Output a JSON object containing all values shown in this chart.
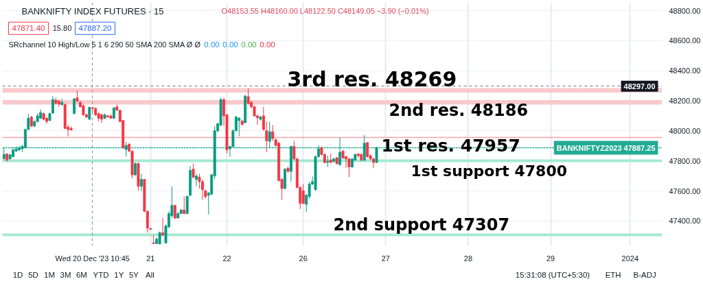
{
  "chart_data": {
    "type": "candlestick",
    "title": "BANKNIFTY INDEX FUTURES · 15",
    "categories": [
      null,
      null,
      null,
      null,
      null,
      null,
      null,
      null,
      null,
      null,
      null,
      null,
      null,
      null,
      null,
      null,
      null,
      null,
      null,
      null,
      null,
      null,
      null,
      null,
      null,
      null,
      null,
      null,
      null,
      "Wed 20 Dec '23 10:45",
      null,
      null,
      null,
      null,
      null,
      null,
      null,
      null,
      null,
      null,
      null,
      null,
      null,
      null,
      null,
      null,
      null,
      null,
      "21",
      null,
      null,
      null,
      null,
      null,
      null,
      null,
      null,
      null,
      null,
      null,
      null,
      null,
      null,
      null,
      null,
      null,
      null,
      null,
      null,
      null,
      null,
      null,
      null,
      "22",
      null,
      null,
      null,
      null,
      null,
      null,
      null,
      null,
      null,
      null,
      null,
      null,
      null,
      null,
      null,
      null,
      null,
      null,
      null,
      null,
      null,
      null,
      null,
      null,
      "26",
      null,
      null,
      null,
      null,
      null,
      null,
      null,
      null,
      null,
      null,
      null,
      null,
      null,
      null,
      null,
      null,
      null,
      null,
      null,
      null,
      null,
      null,
      null,
      null,
      null,
      null,
      "27",
      null,
      null,
      null,
      null,
      null,
      null,
      null,
      null,
      null,
      null,
      null,
      null,
      null,
      null,
      null,
      null,
      null,
      null,
      null,
      null,
      null,
      null,
      null,
      null,
      null,
      null,
      "28",
      null,
      null,
      null,
      null,
      null,
      null,
      null,
      null,
      null,
      null,
      null,
      null,
      null,
      null,
      null,
      null,
      null,
      null,
      null,
      null,
      null,
      null,
      null,
      null,
      null,
      null,
      "29",
      null,
      null,
      null,
      null,
      null,
      null,
      null,
      null,
      null,
      null,
      null,
      null,
      null,
      null,
      null,
      null,
      null,
      null,
      null,
      null,
      null,
      null,
      null,
      null,
      null,
      "2024",
      null,
      null,
      null,
      null,
      null,
      null,
      null,
      null,
      null,
      null
    ],
    "ohlc": [
      [
        47816,
        47888,
        47805,
        47843
      ],
      [
        47846,
        47850,
        47794,
        47805
      ],
      [
        47813,
        47846,
        47810,
        47840
      ],
      [
        47828,
        47888,
        47825,
        47873
      ],
      [
        47866,
        47896,
        47858,
        47879
      ],
      [
        47873,
        47900,
        47866,
        47885
      ],
      [
        47881,
        47906,
        47858,
        47897
      ],
      [
        47888,
        48015,
        47885,
        48009
      ],
      [
        48009,
        48115,
        48006,
        48084
      ],
      [
        48092,
        48100,
        48024,
        48032
      ],
      [
        48032,
        48070,
        48026,
        48062
      ],
      [
        48062,
        48115,
        48057,
        48100
      ],
      [
        48084,
        48142,
        48081,
        48122
      ],
      [
        48115,
        48122,
        48069,
        48077
      ],
      [
        48084,
        48092,
        48047,
        48062
      ],
      [
        48069,
        48121,
        48066,
        48115
      ],
      [
        48118,
        48232,
        48115,
        48208
      ],
      [
        48205,
        48220,
        48175,
        48183
      ],
      [
        48198,
        48205,
        48160,
        48178
      ],
      [
        48175,
        48213,
        48168,
        48190
      ],
      [
        48175,
        48183,
        48013,
        48016
      ],
      [
        48024,
        48040,
        47964,
        48009
      ],
      [
        48016,
        48031,
        48001,
        48006
      ],
      [
        48115,
        48220,
        48112,
        48213
      ],
      [
        48220,
        48266,
        48193,
        48198
      ],
      [
        48190,
        48198,
        48157,
        48160
      ],
      [
        48167,
        48175,
        48100,
        48107
      ],
      [
        48107,
        48115,
        48084,
        48092
      ],
      [
        48077,
        48160,
        48074,
        48157
      ],
      [
        48153.55,
        48160.0,
        48122.5,
        48149.05
      ],
      [
        48149,
        48157,
        48100,
        48107
      ],
      [
        48115,
        48122,
        48062,
        48084
      ],
      [
        48107,
        48115,
        48054,
        48077
      ],
      [
        48084,
        48115,
        48077,
        48107
      ],
      [
        48100,
        48107,
        48092,
        48092
      ],
      [
        48100,
        48107,
        48080,
        48084
      ],
      [
        48084,
        48160,
        48080,
        48152
      ],
      [
        48160,
        48175,
        48133,
        48137
      ],
      [
        48137,
        48140,
        48057,
        48062
      ],
      [
        48069,
        48072,
        47880,
        47888
      ],
      [
        47876,
        47926,
        47828,
        47903
      ],
      [
        47911,
        47918,
        47858,
        47865
      ],
      [
        47865,
        47870,
        47684,
        47707
      ],
      [
        47707,
        47790,
        47700,
        47782
      ],
      [
        47782,
        47790,
        47601,
        47631
      ],
      [
        47631,
        47714,
        47601,
        47677
      ],
      [
        47677,
        47680,
        47460,
        47465
      ],
      [
        47465,
        47470,
        47322,
        47352
      ],
      [
        47350,
        47355,
        47340,
        47345
      ],
      [
        47255,
        47307,
        47246,
        47250
      ],
      [
        47250,
        47290,
        47247,
        47280
      ],
      [
        47247,
        47330,
        47245,
        47322
      ],
      [
        47322,
        47420,
        47299,
        47307
      ],
      [
        47254,
        47375,
        47250,
        47367
      ],
      [
        47360,
        47465,
        47355,
        47450
      ],
      [
        47435,
        47631,
        47420,
        47503
      ],
      [
        47503,
        47510,
        47412,
        47420
      ],
      [
        47420,
        47460,
        47415,
        47450
      ],
      [
        47450,
        47480,
        47445,
        47473
      ],
      [
        47473,
        47563,
        47443,
        47450
      ],
      [
        47450,
        47570,
        47445,
        47563
      ],
      [
        47571,
        47767,
        47563,
        47737
      ],
      [
        47745,
        47782,
        47684,
        47692
      ],
      [
        47677,
        47714,
        47630,
        47699
      ],
      [
        47692,
        47714,
        47616,
        47662
      ],
      [
        47662,
        47677,
        47541,
        47609
      ],
      [
        47601,
        47609,
        47548,
        47563
      ],
      [
        47571,
        47594,
        47443,
        47586
      ],
      [
        47579,
        47714,
        47571,
        47707
      ],
      [
        47700,
        48031,
        47680,
        48001
      ],
      [
        48001,
        48054,
        47990,
        48047
      ],
      [
        48039,
        48220,
        48031,
        48208
      ],
      [
        48208,
        48220,
        48031,
        48100
      ],
      [
        48107,
        48112,
        47850,
        47873
      ],
      [
        47881,
        47900,
        47828,
        47896
      ],
      [
        47896,
        48010,
        47890,
        48001
      ],
      [
        48001,
        48100,
        47995,
        48092
      ],
      [
        48069,
        48092,
        47964,
        48084
      ],
      [
        48066,
        48070,
        48035,
        48042
      ],
      [
        48054,
        48240,
        48050,
        48232
      ],
      [
        48228,
        48281,
        48175,
        48183
      ],
      [
        48190,
        48198,
        48150,
        48160
      ],
      [
        48160,
        48167,
        48092,
        48100
      ],
      [
        48100,
        48107,
        48039,
        48087
      ],
      [
        48077,
        48100,
        48069,
        48092
      ],
      [
        48100,
        48160,
        48001,
        48009
      ],
      [
        48001,
        48062,
        47858,
        47933
      ],
      [
        47930,
        48062,
        47888,
        47994
      ],
      [
        47994,
        48039,
        47933,
        47949
      ],
      [
        47941,
        47950,
        47895,
        47903
      ],
      [
        47918,
        47926,
        47660,
        47669
      ],
      [
        47677,
        47685,
        47541,
        47616
      ],
      [
        47616,
        47752,
        47610,
        47745
      ],
      [
        47752,
        47760,
        47720,
        47730
      ],
      [
        47730,
        47900,
        47662,
        47896
      ],
      [
        47896,
        47933,
        47805,
        47813
      ],
      [
        47813,
        47820,
        47615,
        47624
      ],
      [
        47624,
        47631,
        47480,
        47518
      ],
      [
        47601,
        47646,
        47511,
        47518
      ],
      [
        47511,
        47580,
        47458,
        47571
      ],
      [
        47563,
        47660,
        47548,
        47646
      ],
      [
        47646,
        47697,
        47640,
        47662
      ],
      [
        47609,
        47835,
        47601,
        47828
      ],
      [
        47828,
        47903,
        47820,
        47880
      ],
      [
        47888,
        47896,
        47835,
        47843
      ],
      [
        47843,
        47850,
        47780,
        47790
      ],
      [
        47790,
        47835,
        47760,
        47798
      ],
      [
        47805,
        47850,
        47786,
        47790
      ],
      [
        47798,
        47820,
        47790,
        47813
      ],
      [
        47820,
        47828,
        47775,
        47782
      ],
      [
        47775,
        47956,
        47767,
        47858
      ],
      [
        47865,
        47873,
        47813,
        47820
      ],
      [
        47828,
        47835,
        47752,
        47813
      ],
      [
        47813,
        47820,
        47692,
        47760
      ],
      [
        47760,
        47820,
        47752,
        47813
      ],
      [
        47805,
        47850,
        47800,
        47843
      ],
      [
        47846,
        47850,
        47820,
        47835
      ],
      [
        47843,
        47850,
        47798,
        47805
      ],
      [
        47805,
        47971,
        47798,
        47918
      ],
      [
        47922,
        47926,
        47820,
        47828
      ],
      [
        47835,
        47843,
        47805,
        47813
      ],
      [
        47813,
        47820,
        47752,
        47790
      ],
      [
        47790,
        47895,
        47785,
        47887.25
      ],
      null,
      null,
      null,
      null,
      null,
      null,
      null,
      null,
      null,
      null,
      null,
      null,
      null,
      null,
      null,
      null,
      null,
      null,
      null,
      null,
      null,
      null,
      null,
      null,
      null,
      null,
      null,
      null,
      null,
      null,
      null,
      null,
      null,
      null,
      null,
      null,
      null,
      null,
      null,
      null,
      null,
      null,
      null,
      null,
      null,
      null,
      null,
      null,
      null,
      null,
      null,
      null,
      null,
      null,
      null,
      null,
      null,
      null,
      null,
      null,
      null,
      null,
      null,
      null,
      null,
      null,
      null,
      null,
      null,
      null,
      null,
      null,
      null,
      null,
      null,
      null,
      null,
      null,
      null,
      null,
      null,
      null,
      null,
      null,
      null,
      null,
      null,
      null,
      null,
      null,
      null,
      null,
      null
    ],
    "colors": [
      "#089981",
      "#f23645",
      "#089981",
      "#089981",
      "#089981",
      "#089981",
      "#089981",
      "#089981",
      "#089981",
      "#f23645",
      "#089981",
      "#089981",
      "#089981",
      "#f23645",
      "#f23645",
      "#089981",
      "#089981",
      "#f23645",
      "#f23645",
      "#089981",
      "#f23645",
      "#f23645",
      "#f23645",
      "#089981",
      "#f23645",
      "#f23645",
      "#f23645",
      "#f23645",
      "#089981",
      "#f23645",
      "#f23645",
      "#f23645",
      "#f23645",
      "#089981",
      "#f23645",
      "#f23645",
      "#089981",
      "#f23645",
      "#f23645",
      "#f23645",
      "#089981",
      "#f23645",
      "#f23645",
      "#089981",
      "#f23645",
      "#089981",
      "#f23645",
      "#f23645",
      "#f23645",
      "#f23645",
      "#089981",
      "#089981",
      "#f23645",
      "#089981",
      "#089981",
      "#089981",
      "#f23645",
      "#089981",
      "#089981",
      "#f23645",
      "#089981",
      "#089981",
      "#f23645",
      "#089981",
      "#f23645",
      "#f23645",
      "#f23645",
      "#089981",
      "#089981",
      "#089981",
      "#089981",
      "#089981",
      "#f23645",
      "#f23645",
      "#089981",
      "#089981",
      "#089981",
      "#089981",
      "#f23645",
      "#089981",
      "#f23645",
      "#f23645",
      "#f23645",
      "#f23645",
      "#089981",
      "#f23645",
      "#f23645",
      "#089981",
      "#f23645",
      "#f23645",
      "#f23645",
      "#f23645",
      "#089981",
      "#f23645",
      "#089981",
      "#f23645",
      "#f23645",
      "#f23645",
      "#f23645",
      "#089981",
      "#089981",
      "#089981",
      "#089981",
      "#089981",
      "#f23645",
      "#f23645",
      "#089981",
      "#f23645",
      "#089981",
      "#f23645",
      "#089981",
      "#f23645",
      "#f23645",
      "#f23645",
      "#089981",
      "#089981",
      "#f23645",
      "#f23645",
      "#089981",
      "#f23645",
      "#f23645",
      "#f23645",
      "#089981",
      null,
      null,
      null,
      null,
      null,
      null,
      null,
      null,
      null,
      null,
      null,
      null,
      null,
      null,
      null,
      null,
      null,
      null,
      null,
      null,
      null,
      null,
      null,
      null,
      null,
      null,
      null,
      null,
      null,
      null,
      null,
      null,
      null,
      null,
      null,
      null,
      null,
      null,
      null,
      null,
      null,
      null,
      null,
      null,
      null,
      null,
      null,
      null,
      null,
      null,
      null,
      null,
      null,
      null,
      null,
      null,
      null,
      null,
      null,
      null,
      null,
      null,
      null,
      null,
      null,
      null,
      null,
      null,
      null,
      null,
      null,
      null,
      null,
      null,
      null,
      null,
      null,
      null,
      null,
      null,
      null,
      null,
      null,
      null,
      null,
      null,
      null,
      null,
      null,
      null,
      null,
      null,
      null
    ],
    "ylim": [
      47235,
      48855
    ],
    "yticks": [
      {
        "value": 47400,
        "label": "47400.00"
      },
      {
        "value": 47600,
        "label": "47600.00"
      },
      {
        "value": 47800,
        "label": "47800.00"
      },
      {
        "value": 48000,
        "label": "48000.00"
      },
      {
        "value": 48200,
        "label": "48200.00"
      },
      {
        "value": 48400,
        "label": "48400.00"
      },
      {
        "value": 48600,
        "label": "48600.00"
      },
      {
        "value": 48800,
        "label": "48800.00"
      }
    ],
    "grid": true,
    "bands": [
      {
        "axis": "y",
        "from": 48255,
        "to": 48285,
        "label": "3rd res. 48269",
        "color": "#f9c9cb"
      },
      {
        "axis": "y",
        "from": 48175,
        "to": 48205,
        "label": "2nd res. 48186",
        "color": "#f9c9cb"
      }
    ],
    "ref_lines": [
      {
        "axis": "y",
        "value": 47957,
        "label": "1st res. 47957",
        "color": "#f3a5aa"
      },
      {
        "axis": "y",
        "value": 47800,
        "label": "1st support 47800",
        "color": "#a5ead0"
      },
      {
        "axis": "y",
        "value": 47307,
        "label": "2nd support 47307",
        "color": "#a5ead0"
      },
      {
        "axis": "x",
        "value": "Wed 20 Dec '23 10:45",
        "color": "#9598a1",
        "line_style": "dashed"
      },
      {
        "axis": "y",
        "value": 48297,
        "label": "48297.00",
        "color": "#9598a1",
        "line_style": "dashed"
      },
      {
        "axis": "y",
        "value": 47887.25,
        "label": "BANKNIFTYZ2023 47887.25",
        "color": "#22ab94",
        "line_style": "dotted"
      }
    ],
    "annotations": [
      "O48153.55 H48160.00 L48122.50 C48149.05 −3.90 (−0.01%)",
      "47871.40",
      "15.80",
      "47887.20",
      "SRchannel 10 High/Low 5 1 6 290 50 SMA 200 SMA Ø Ø",
      "0.00",
      "0.00",
      "0.00",
      "0.00",
      "1D",
      "5D",
      "1M",
      "3M",
      "6M",
      "YTD",
      "1Y",
      "5Y",
      "All",
      "15:31:08 (UTC+5:30)",
      "ETH",
      "B-ADJ"
    ]
  }
}
